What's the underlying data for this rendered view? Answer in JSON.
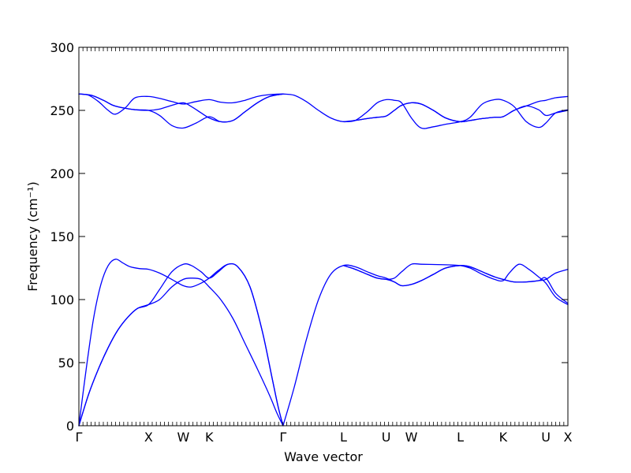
{
  "chart_data": {
    "type": "line",
    "xlabel": "Wave vector",
    "ylabel": "Frequency (cm⁻¹)",
    "ylim": [
      0,
      300
    ],
    "xlim": [
      0,
      20
    ],
    "yticks": [
      0,
      50,
      100,
      150,
      200,
      250,
      300
    ],
    "high_symmetry_points": [
      {
        "label": "Γ",
        "x": 0
      },
      {
        "label": "X",
        "x": 2.85
      },
      {
        "label": "W",
        "x": 4.27
      },
      {
        "label": "K",
        "x": 5.33
      },
      {
        "label": "Γ",
        "x": 8.35
      },
      {
        "label": "L",
        "x": 10.82
      },
      {
        "label": "U",
        "x": 12.57
      },
      {
        "label": "W",
        "x": 13.6
      },
      {
        "label": "L",
        "x": 15.6
      },
      {
        "label": "K",
        "x": 17.35
      },
      {
        "label": "U",
        "x": 19.1
      },
      {
        "label": "X",
        "x": 20
      }
    ],
    "color": "#0000ff",
    "grid": false,
    "series": [
      {
        "x": [
          0,
          0.4,
          0.8,
          1.2,
          1.6,
          2.0,
          2.4,
          2.85,
          3.3,
          3.8,
          4.27,
          4.6,
          5.0,
          5.33,
          5.8,
          6.3,
          6.8,
          7.3,
          7.8,
          8.1,
          8.35
        ],
        "values": [
          0,
          25,
          45,
          62,
          76,
          86,
          93,
          96,
          100,
          110,
          116,
          117,
          116,
          110,
          100,
          85,
          65,
          45,
          24,
          10,
          0
        ]
      },
      {
        "x": [
          0,
          0.4,
          0.8,
          1.2,
          1.6,
          2.0,
          2.4,
          2.85,
          3.3,
          3.8,
          4.27,
          4.6,
          5.0,
          5.33,
          5.7,
          6.1,
          6.5,
          7.0,
          7.5,
          7.9,
          8.15,
          8.35
        ],
        "values": [
          0,
          25,
          45,
          62,
          76,
          86,
          93,
          96,
          108,
          122,
          128,
          127,
          122,
          117,
          122,
          128,
          126,
          110,
          75,
          38,
          15,
          0
        ]
      },
      {
        "x": [
          0,
          0.3,
          0.6,
          0.9,
          1.2,
          1.5,
          1.8,
          2.1,
          2.5,
          2.85,
          3.3,
          3.8,
          4.27,
          4.6,
          5.0,
          5.33,
          5.7,
          6.1,
          6.5,
          7.0,
          7.5,
          7.9,
          8.15,
          8.35
        ],
        "values": [
          0,
          45,
          85,
          112,
          127,
          132,
          129,
          126,
          124.5,
          124,
          121,
          116,
          111,
          110,
          113,
          117,
          123,
          128,
          126,
          110,
          75,
          38,
          15,
          0
        ]
      },
      {
        "x": [
          8.35,
          8.8,
          9.3,
          9.8,
          10.3,
          10.82,
          11.3,
          11.8,
          12.2,
          12.57,
          12.9,
          13.2,
          13.6,
          14.0,
          14.5,
          15.0,
          15.6,
          16.0,
          16.5,
          17.0,
          17.35,
          17.8,
          18.3,
          18.8,
          19.1,
          19.5,
          20
        ],
        "values": [
          0,
          30,
          68,
          100,
          120,
          127,
          126,
          122,
          119,
          117,
          114,
          111,
          112,
          115,
          120,
          125,
          127,
          126,
          122,
          118,
          116,
          114,
          114,
          115,
          116,
          121,
          124
        ]
      },
      {
        "x": [
          10.82,
          11.3,
          11.8,
          12.2,
          12.57,
          12.9,
          13.2,
          13.6,
          14.0,
          14.5,
          15.0,
          15.6,
          16.0,
          16.5,
          17.0,
          17.35,
          17.6,
          18.0,
          18.4,
          18.8,
          19.1,
          19.5,
          20
        ],
        "values": [
          127,
          124,
          120,
          117,
          116,
          117,
          122,
          128,
          128,
          127.8,
          127.6,
          127,
          125,
          120,
          116,
          115,
          121,
          128,
          124,
          118,
          113,
          102,
          96
        ]
      },
      {
        "x": [
          10.82,
          11.3,
          11.8,
          12.2,
          12.57,
          12.9,
          13.2,
          13.6,
          14.0,
          14.5,
          15.0,
          15.6,
          16.0,
          16.5,
          17.0,
          17.35,
          17.8,
          18.3,
          18.8,
          19.1,
          19.5,
          20
        ],
        "values": [
          127,
          124,
          120,
          117,
          116,
          114,
          111,
          112,
          115,
          120,
          125,
          127,
          126,
          122,
          118,
          116,
          114,
          114,
          115,
          117,
          105,
          97
        ]
      },
      {
        "x": [
          0,
          0.5,
          1.0,
          1.4,
          1.8,
          2.3,
          2.85,
          3.3,
          3.8,
          4.27,
          4.6,
          5.0,
          5.33,
          5.8,
          6.3,
          6.8,
          7.3,
          7.8,
          8.35
        ],
        "values": [
          263,
          262,
          258,
          254,
          252,
          250.5,
          250,
          251,
          254,
          256,
          253,
          248,
          244,
          241,
          242,
          249,
          256,
          261,
          263
        ]
      },
      {
        "x": [
          0,
          0.5,
          1.0,
          1.4,
          1.8,
          2.3,
          2.85,
          3.3,
          3.8,
          4.27,
          4.8,
          5.33,
          5.8,
          6.3,
          6.8,
          7.3,
          7.8,
          8.35
        ],
        "values": [
          263,
          262,
          258,
          254,
          252,
          250.5,
          250,
          246,
          238,
          236,
          240,
          245,
          241,
          242,
          249,
          256,
          261,
          263
        ]
      },
      {
        "x": [
          0,
          0.4,
          0.8,
          1.2,
          1.5,
          1.9,
          2.3,
          2.85,
          3.3,
          3.8,
          4.27,
          4.8,
          5.33,
          5.8,
          6.3,
          6.8,
          7.3,
          7.8,
          8.35
        ],
        "values": [
          263,
          262,
          257,
          250,
          247,
          252,
          260,
          261,
          259.5,
          257,
          255,
          257,
          258.5,
          256.5,
          256,
          258,
          261,
          262.5,
          263
        ]
      },
      {
        "x": [
          8.35,
          8.8,
          9.3,
          9.8,
          10.3,
          10.82,
          11.3,
          11.8,
          12.2,
          12.57,
          12.9,
          13.2,
          13.6,
          14.0,
          14.5,
          15.0,
          15.6,
          16.0,
          16.5,
          17.0,
          17.35,
          17.8,
          18.3,
          18.8,
          19.1,
          19.5,
          20
        ],
        "values": [
          263,
          262,
          257,
          250,
          244,
          241,
          242,
          243.5,
          244.5,
          245.5,
          250,
          254,
          256,
          255,
          250,
          244,
          241,
          242,
          243.5,
          244.5,
          245,
          250,
          253.5,
          250.5,
          246,
          248,
          250
        ]
      },
      {
        "x": [
          10.82,
          11.3,
          11.8,
          12.2,
          12.57,
          12.9,
          13.2,
          13.6,
          14.0,
          14.5,
          15.0,
          15.6,
          16.0,
          16.5,
          17.0,
          17.35,
          17.8,
          18.3,
          18.8,
          19.1,
          19.5,
          20
        ],
        "values": [
          241,
          242,
          249,
          256,
          258.5,
          258,
          256,
          244,
          236,
          237,
          239,
          241,
          244.5,
          255,
          258.5,
          258,
          253,
          241,
          236.5,
          240,
          248,
          250.5
        ]
      },
      {
        "x": [
          10.82,
          11.3,
          11.8,
          12.2,
          12.57,
          12.9,
          13.2,
          13.6,
          14.0,
          14.5,
          15.0,
          15.6,
          16.0,
          16.5,
          17.0,
          17.35,
          17.8,
          18.3,
          18.8,
          19.1,
          19.5,
          20
        ],
        "values": [
          241,
          242,
          243.5,
          244.5,
          245.5,
          250,
          254,
          256,
          255,
          250,
          244,
          241,
          242,
          243.5,
          244.5,
          245,
          250,
          253.5,
          257,
          258,
          260,
          261
        ]
      }
    ]
  }
}
